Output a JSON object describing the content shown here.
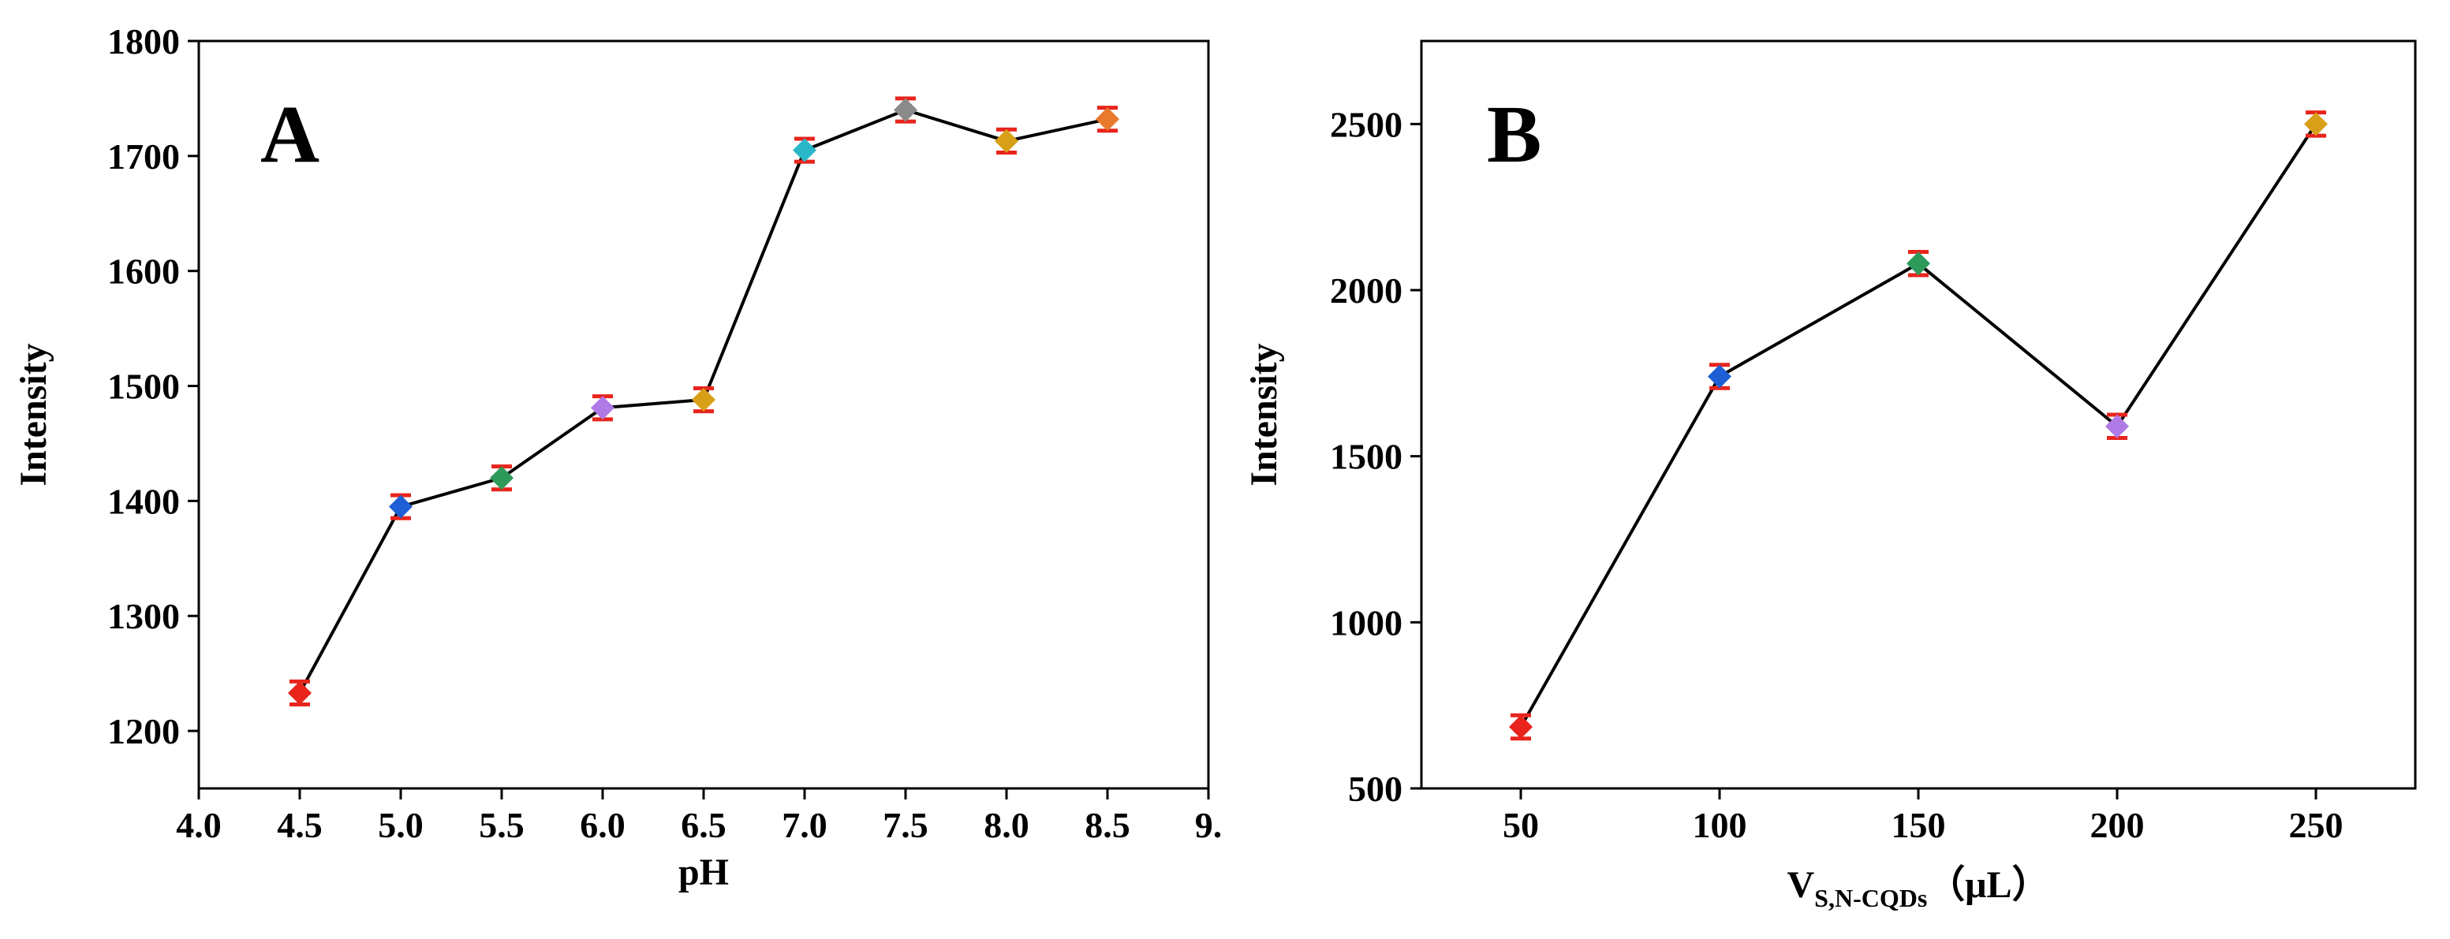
{
  "chart_data": [
    {
      "type": "line",
      "panel_label": "A",
      "xlabel": "pH",
      "ylabel": "Intensity",
      "xlim": [
        4.0,
        9.0
      ],
      "ylim": [
        1150,
        1800
      ],
      "xticks": [
        4.0,
        4.5,
        5.0,
        5.5,
        6.0,
        6.5,
        7.0,
        7.5,
        8.0,
        8.5,
        9.0
      ],
      "xtick_labels": [
        "4.0",
        "4.5",
        "5.0",
        "5.5",
        "6.0",
        "6.5",
        "7.0",
        "7.5",
        "8.0",
        "8.5",
        "9."
      ],
      "yticks": [
        1200,
        1300,
        1400,
        1500,
        1600,
        1700,
        1800
      ],
      "ytick_labels": [
        "1200",
        "1300",
        "1400",
        "1500",
        "1600",
        "1700",
        "1800"
      ],
      "x": [
        4.5,
        5.0,
        5.5,
        6.0,
        6.5,
        7.0,
        7.5,
        8.0,
        8.5
      ],
      "y": [
        1233,
        1395,
        1420,
        1481,
        1488,
        1705,
        1740,
        1713,
        1732
      ],
      "error": [
        10,
        10,
        10,
        10,
        10,
        10,
        10,
        10,
        10
      ],
      "marker_colors": [
        "#e8241c",
        "#1f5fd6",
        "#2e9a5a",
        "#b07ae6",
        "#d8a018",
        "#2ab8c8",
        "#8a8a8a",
        "#d8a018",
        "#e87a2c"
      ]
    },
    {
      "type": "line",
      "panel_label": "B",
      "xlabel_main": "V",
      "xlabel_sub": "S,N-CQDs",
      "xlabel_unit": "（μL）",
      "ylabel": "Intensity",
      "xlim": [
        25,
        275
      ],
      "ylim": [
        500,
        2750
      ],
      "xticks": [
        50,
        100,
        150,
        200,
        250
      ],
      "xtick_labels": [
        "50",
        "100",
        "150",
        "200",
        "250"
      ],
      "yticks": [
        500,
        1000,
        1500,
        2000,
        2500
      ],
      "ytick_labels": [
        "500",
        "1000",
        "1500",
        "2000",
        "2500"
      ],
      "x": [
        50,
        100,
        150,
        200,
        250
      ],
      "y": [
        685,
        1740,
        2080,
        1590,
        2500
      ],
      "error": [
        35,
        35,
        35,
        35,
        35
      ],
      "marker_colors": [
        "#e8241c",
        "#1f5fd6",
        "#2e9a5a",
        "#b07ae6",
        "#d8a018"
      ]
    }
  ]
}
